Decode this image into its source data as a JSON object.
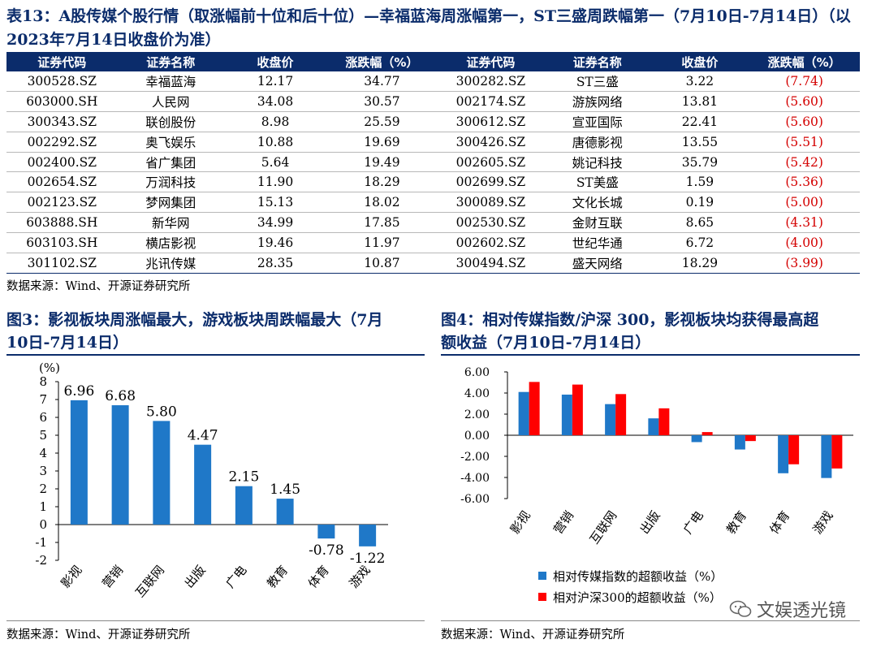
{
  "table13": {
    "title": "表13：A股传媒个股行情（取涨幅前十位和后十位）—幸福蓝海周涨幅第一，ST三盛周跌幅第一（7月10日-7月14日）（以2023年7月14日收盘价为准）",
    "headers": [
      "证券代码",
      "证券名称",
      "收盘价",
      "涨跌幅（%）",
      "证券代码",
      "证券名称",
      "收盘价",
      "涨跌幅（%）"
    ],
    "rows": [
      [
        "300528.SZ",
        "幸福蓝海",
        "12.17",
        "34.77",
        "300282.SZ",
        "ST三盛",
        "3.22",
        "(7.74)"
      ],
      [
        "603000.SH",
        "人民网",
        "34.08",
        "30.57",
        "002174.SZ",
        "游族网络",
        "13.81",
        "(5.60)"
      ],
      [
        "300343.SZ",
        "联创股份",
        "8.98",
        "25.59",
        "300612.SZ",
        "宣亚国际",
        "22.41",
        "(5.60)"
      ],
      [
        "002292.SZ",
        "奥飞娱乐",
        "10.88",
        "19.69",
        "300426.SZ",
        "唐德影视",
        "13.55",
        "(5.51)"
      ],
      [
        "002400.SZ",
        "省广集团",
        "5.64",
        "19.49",
        "002605.SZ",
        "姚记科技",
        "35.79",
        "(5.42)"
      ],
      [
        "002654.SZ",
        "万润科技",
        "11.90",
        "18.29",
        "002699.SZ",
        "ST美盛",
        "1.59",
        "(5.36)"
      ],
      [
        "002123.SZ",
        "梦网集团",
        "15.13",
        "18.02",
        "300089.SZ",
        "文化长城",
        "0.19",
        "(5.00)"
      ],
      [
        "603888.SH",
        "新华网",
        "34.99",
        "17.85",
        "002530.SZ",
        "金财互联",
        "8.65",
        "(4.31)"
      ],
      [
        "603103.SH",
        "横店影视",
        "19.46",
        "11.97",
        "002602.SZ",
        "世纪华通",
        "6.72",
        "(4.00)"
      ],
      [
        "301102.SZ",
        "兆讯传媒",
        "28.35",
        "10.87",
        "300494.SZ",
        "盛天网络",
        "18.29",
        "(3.99)"
      ]
    ],
    "source": "数据来源：Wind、开源证券研究所"
  },
  "fig3": {
    "title_line1": "图3：影视板块周涨幅最大，游戏板块周跌幅最大（7月",
    "title_line2": "10日-7月14日）",
    "source": "数据来源：Wind、开源证券研究所"
  },
  "fig4": {
    "title_line1": "图4：相对传媒指数/沪深 300，影视板块均获得最高超",
    "title_line2": "额收益（7月10日-7月14日）",
    "source": "数据来源：Wind、开源证券研究所"
  },
  "watermark": "文娱透光镜",
  "colors": {
    "navy": "#0b2c6b",
    "blue": "#1f78c8",
    "red": "#ff0000",
    "neg_text": "#d40000"
  },
  "chart_data": [
    {
      "type": "bar",
      "unit_label": "(%)",
      "categories": [
        "影视",
        "营销",
        "互联网",
        "出版",
        "广电",
        "教育",
        "体育",
        "游戏"
      ],
      "values": [
        6.96,
        6.68,
        5.8,
        4.47,
        2.15,
        1.45,
        -0.78,
        -1.22
      ],
      "value_labels": [
        "6.96",
        "6.68",
        "5.80",
        "4.47",
        "2.15",
        "1.45",
        "-0.78",
        "-1.22"
      ],
      "ylim": [
        -2,
        8
      ],
      "yticks": [
        "-2",
        "-1",
        "0",
        "1",
        "2",
        "3",
        "4",
        "5",
        "6",
        "7",
        "8"
      ],
      "color": "#1f78c8",
      "grid": false
    },
    {
      "type": "bar",
      "categories": [
        "影视",
        "营销",
        "互联网",
        "出版",
        "广电",
        "教育",
        "体育",
        "游戏"
      ],
      "series": [
        {
          "name": "相对传媒指数的超额收益（%）",
          "color": "#1f78c8",
          "values": [
            4.1,
            3.85,
            2.95,
            1.6,
            -0.65,
            -1.35,
            -3.6,
            -4.05
          ]
        },
        {
          "name": "相对沪深300的超额收益（%）",
          "color": "#ff0000",
          "values": [
            5.05,
            4.8,
            3.9,
            2.55,
            0.3,
            -0.55,
            -2.75,
            -3.15
          ]
        }
      ],
      "ylim": [
        -6,
        6
      ],
      "yticks": [
        "-6.00",
        "-4.00",
        "-2.00",
        "0.00",
        "2.00",
        "4.00",
        "6.00"
      ],
      "legend": "bottom",
      "grid": false
    }
  ]
}
